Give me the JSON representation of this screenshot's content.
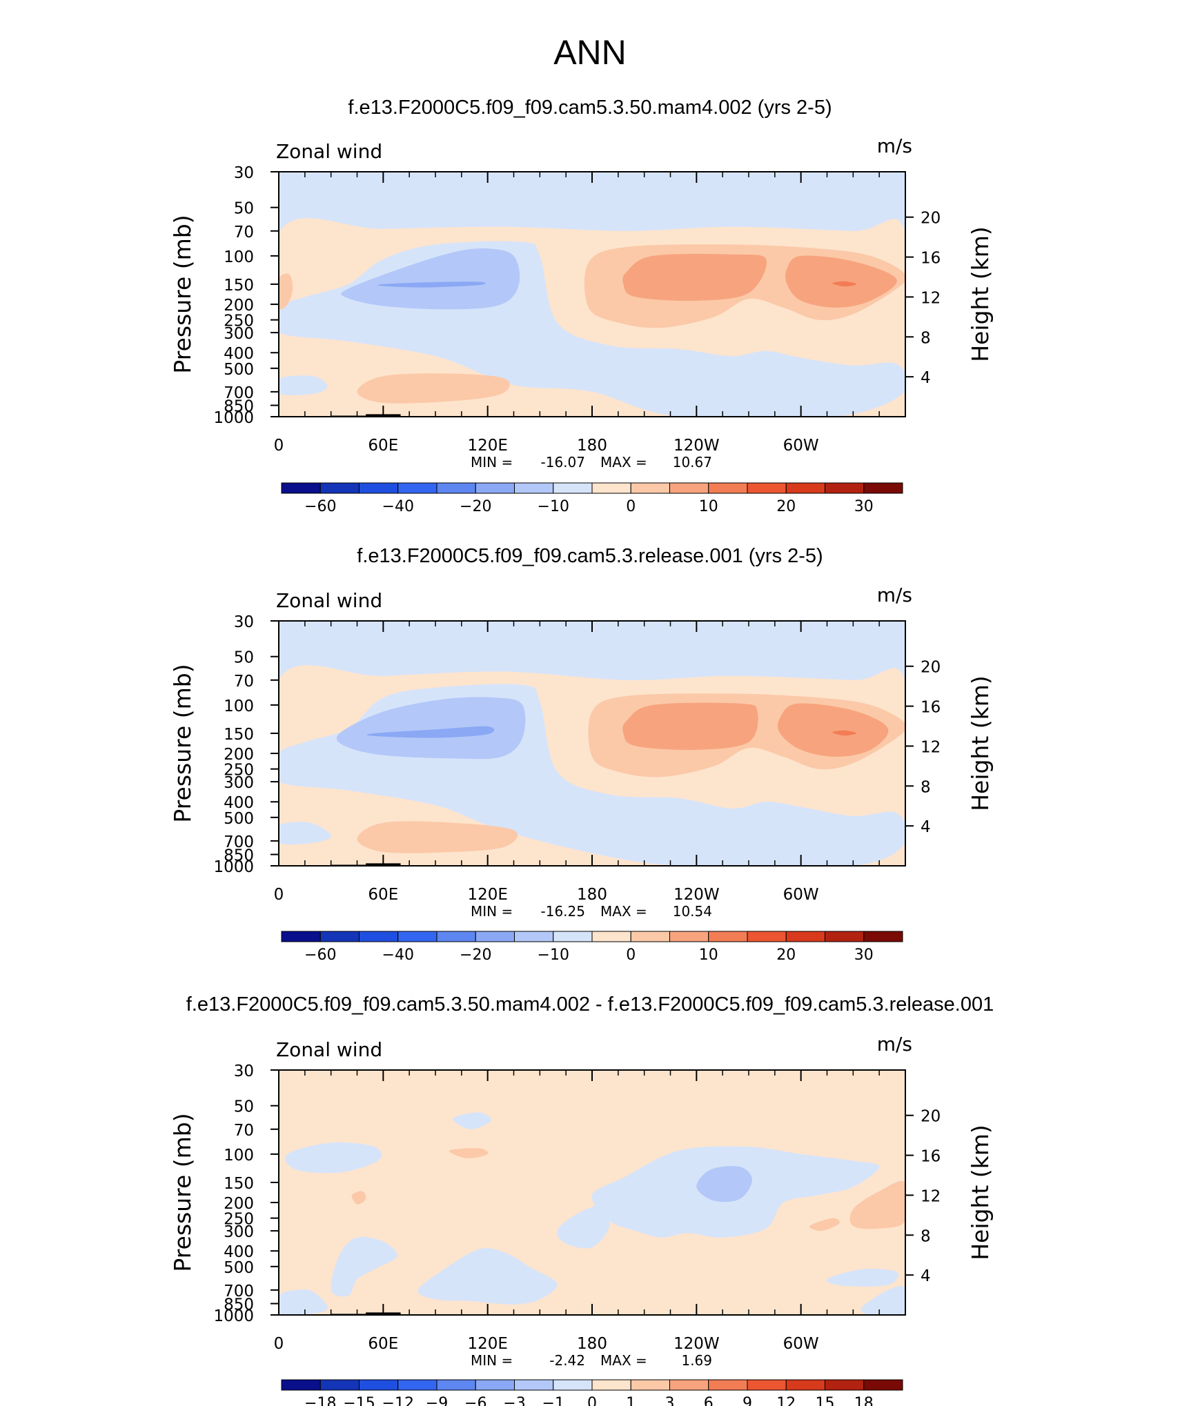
{
  "figure": {
    "main_title": "ANN"
  },
  "chart_data": [
    {
      "type": "filled-contour",
      "title": "f.e13.F2000C5.f09_f09.cam5.3.50.mam4.002 (yrs 2-5)",
      "left_label": "Zonal wind",
      "units": "m/s",
      "ylabel": "Pressure (mb)",
      "y2label": "Height (km)",
      "pressure_ticks": [
        "30",
        "50",
        "70",
        "100",
        "150",
        "200",
        "250",
        "300",
        "400",
        "500",
        "700",
        "850",
        "1000"
      ],
      "height_ticks": [
        "20",
        "16",
        "12",
        "8",
        "4"
      ],
      "lon_ticks": [
        "0",
        "60E",
        "120E",
        "180",
        "120W",
        "60W"
      ],
      "min_label": "MIN =",
      "min_value": "-16.07",
      "max_label": "MAX =",
      "max_value": "10.67",
      "colorbar_ticks": [
        "−60",
        "−40",
        "−20",
        "−10",
        "0",
        "10",
        "20",
        "30"
      ],
      "colorbar_colors": [
        "#0a0f8c",
        "#1435b8",
        "#1f4fe0",
        "#3366f0",
        "#5e86f0",
        "#8aa8f4",
        "#b3c8f8",
        "#d6e4fa",
        "#fde4cd",
        "#fbc9a8",
        "#f7a47e",
        "#f27d55",
        "#ec5630",
        "#d83a1c",
        "#b22210",
        "#7a0a05"
      ],
      "features": [
        {
          "name": "easterly jet core",
          "lon_center": 95,
          "pressure_mb": 150,
          "value_range": [
            -16.07,
            -10
          ]
        },
        {
          "name": "westerly jet (Pacific)",
          "lon_center": 235,
          "pressure_mb": 150,
          "value_range": [
            5,
            10
          ]
        },
        {
          "name": "westerly jet (Atlantic)",
          "lon_center": 320,
          "pressure_mb": 150,
          "value_range": [
            5,
            10.67
          ]
        }
      ]
    },
    {
      "type": "filled-contour",
      "title": "f.e13.F2000C5.f09_f09.cam5.3.release.001 (yrs 2-5)",
      "left_label": "Zonal wind",
      "units": "m/s",
      "ylabel": "Pressure (mb)",
      "y2label": "Height (km)",
      "pressure_ticks": [
        "30",
        "50",
        "70",
        "100",
        "150",
        "200",
        "250",
        "300",
        "400",
        "500",
        "700",
        "850",
        "1000"
      ],
      "height_ticks": [
        "20",
        "16",
        "12",
        "8",
        "4"
      ],
      "lon_ticks": [
        "0",
        "60E",
        "120E",
        "180",
        "120W",
        "60W"
      ],
      "min_label": "MIN =",
      "min_value": "-16.25",
      "max_label": "MAX =",
      "max_value": "10.54",
      "colorbar_ticks": [
        "−60",
        "−40",
        "−20",
        "−10",
        "0",
        "10",
        "20",
        "30"
      ],
      "colorbar_colors": [
        "#0a0f8c",
        "#1435b8",
        "#1f4fe0",
        "#3366f0",
        "#5e86f0",
        "#8aa8f4",
        "#b3c8f8",
        "#d6e4fa",
        "#fde4cd",
        "#fbc9a8",
        "#f7a47e",
        "#f27d55",
        "#ec5630",
        "#d83a1c",
        "#b22210",
        "#7a0a05"
      ],
      "features": [
        {
          "name": "easterly jet core",
          "lon_center": 95,
          "pressure_mb": 150,
          "value_range": [
            -16.25,
            -10
          ]
        },
        {
          "name": "westerly jet (Pacific)",
          "lon_center": 235,
          "pressure_mb": 150,
          "value_range": [
            5,
            10
          ]
        },
        {
          "name": "westerly jet (Atlantic)",
          "lon_center": 320,
          "pressure_mb": 150,
          "value_range": [
            5,
            10.54
          ]
        }
      ]
    },
    {
      "type": "filled-contour",
      "title": "f.e13.F2000C5.f09_f09.cam5.3.50.mam4.002 - f.e13.F2000C5.f09_f09.cam5.3.release.001",
      "left_label": "Zonal wind",
      "units": "m/s",
      "ylabel": "Pressure (mb)",
      "y2label": "Height (km)",
      "pressure_ticks": [
        "30",
        "50",
        "70",
        "100",
        "150",
        "200",
        "250",
        "300",
        "400",
        "500",
        "700",
        "850",
        "1000"
      ],
      "height_ticks": [
        "20",
        "16",
        "12",
        "8",
        "4"
      ],
      "lon_ticks": [
        "0",
        "60E",
        "120E",
        "180",
        "120W",
        "60W"
      ],
      "min_label": "MIN =",
      "min_value": "-2.42",
      "max_label": "MAX =",
      "max_value": "1.69",
      "colorbar_ticks": [
        "−18",
        "−15",
        "−12",
        "−9",
        "−6",
        "−3",
        "−1",
        "0",
        "1",
        "3",
        "6",
        "9",
        "12",
        "15",
        "18"
      ],
      "colorbar_colors": [
        "#0a0f8c",
        "#1435b8",
        "#1f4fe0",
        "#3366f0",
        "#5e86f0",
        "#8aa8f4",
        "#b3c8f8",
        "#d6e4fa",
        "#fde4cd",
        "#fbc9a8",
        "#f7a47e",
        "#f27d55",
        "#ec5630",
        "#d83a1c",
        "#b22210",
        "#7a0a05"
      ],
      "features": [
        {
          "name": "negative anomaly",
          "lon_center": 250,
          "pressure_mb": 150,
          "value_range": [
            -2.42,
            -1
          ]
        },
        {
          "name": "positive anomaly",
          "lon_center": 340,
          "pressure_mb": 230,
          "value_range": [
            0,
            1.69
          ]
        }
      ]
    }
  ]
}
